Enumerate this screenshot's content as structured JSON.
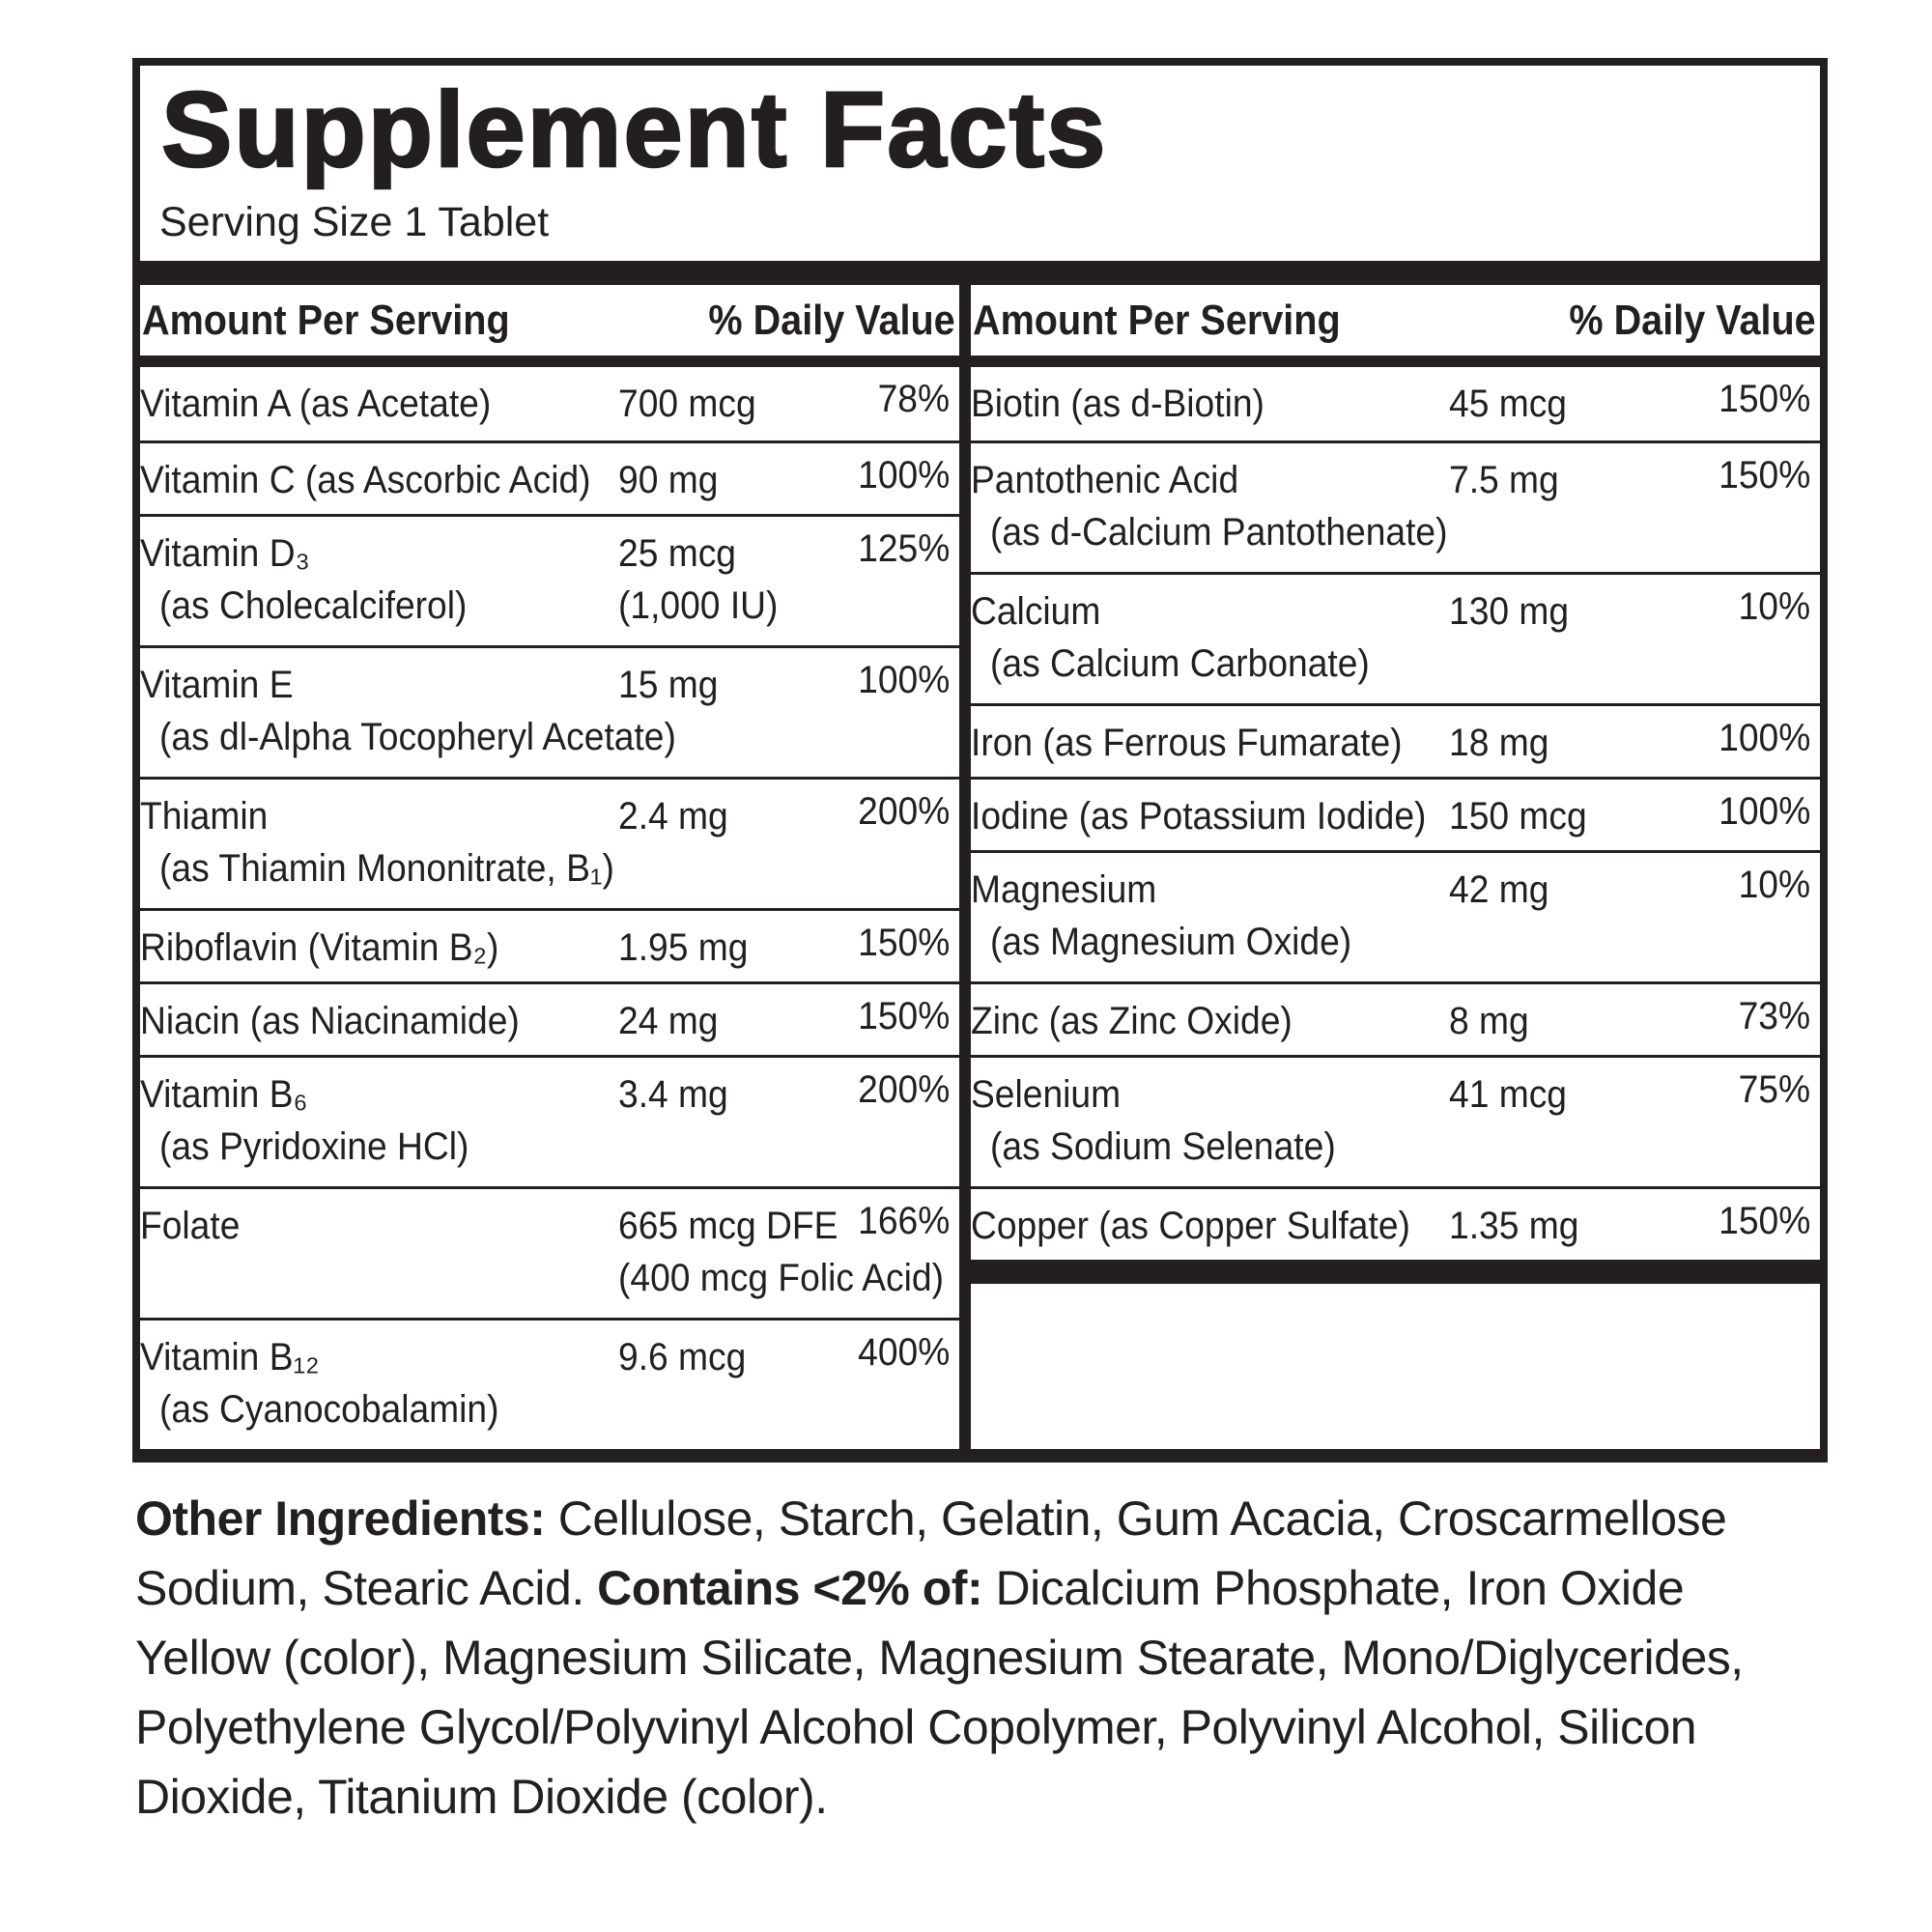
{
  "panel": {
    "title": "Supplement Facts",
    "serving_size": "Serving Size 1 Tablet",
    "ink_color": "#231f20",
    "header": {
      "amount": "Amount Per Serving",
      "daily_value": "% Daily Value"
    },
    "left_rows": [
      {
        "name": "Vitamin A (as Acetate)",
        "amount": "700 mcg",
        "dv": "78%"
      },
      {
        "name": "Vitamin C (as Ascorbic Acid)",
        "amount": "90 mg",
        "dv": "100%"
      },
      {
        "name": "Vitamin D₃",
        "name2": "(as Cholecalciferol)",
        "amount": "25 mcg",
        "amount2": "(1,000 IU)",
        "dv": "125%"
      },
      {
        "name": "Vitamin E",
        "name2": "(as dl-Alpha Tocopheryl Acetate)",
        "amount": "15 mg",
        "dv": "100%"
      },
      {
        "name": "Thiamin",
        "name2": "(as Thiamin Mononitrate, B₁)",
        "amount": "2.4 mg",
        "dv": "200%"
      },
      {
        "name": "Riboflavin (Vitamin B₂)",
        "amount": "1.95 mg",
        "dv": "150%"
      },
      {
        "name": "Niacin (as Niacinamide)",
        "amount": "24 mg",
        "dv": "150%"
      },
      {
        "name": "Vitamin B₆",
        "name2": "(as Pyridoxine HCl)",
        "amount": "3.4 mg",
        "dv": "200%"
      },
      {
        "name": "Folate",
        "amount": "665 mcg DFE",
        "amount2": "(400 mcg Folic Acid)",
        "dv": "166%"
      },
      {
        "name": "Vitamin B₁₂",
        "name2": "(as Cyanocobalamin)",
        "amount": "9.6 mcg",
        "dv": "400%"
      }
    ],
    "right_rows": [
      {
        "name": "Biotin (as d-Biotin)",
        "amount": "45 mcg",
        "dv": "150%"
      },
      {
        "name": "Pantothenic Acid",
        "name2": "(as d-Calcium Pantothenate)",
        "amount": "7.5 mg",
        "dv": "150%"
      },
      {
        "name": "Calcium",
        "name2": "(as Calcium Carbonate)",
        "amount": "130 mg",
        "dv": "10%"
      },
      {
        "name": "Iron (as Ferrous Fumarate)",
        "amount": "18 mg",
        "dv": "100%"
      },
      {
        "name": "Iodine (as Potassium Iodide)",
        "amount": "150 mcg",
        "dv": "100%"
      },
      {
        "name": "Magnesium",
        "name2": "(as Magnesium Oxide)",
        "amount": "42 mg",
        "dv": "10%"
      },
      {
        "name": "Zinc (as Zinc Oxide)",
        "amount": "8 mg",
        "dv": "73%"
      },
      {
        "name": "Selenium",
        "name2": "(as Sodium Selenate)",
        "amount": "41 mcg",
        "dv": "75%"
      },
      {
        "name": "Copper (as Copper Sulfate)",
        "amount": "1.35 mg",
        "dv": "150%"
      }
    ],
    "other_ingredients": [
      {
        "text": "Other Ingredients: ",
        "bold": true
      },
      {
        "text": "Cellulose, Starch, Gelatin, Gum Acacia, Croscarmellose Sodium, Stearic Acid. ",
        "bold": false
      },
      {
        "text": "Contains <2% of: ",
        "bold": true
      },
      {
        "text": "Dicalcium Phosphate, Iron Oxide Yellow (color), Magnesium Silicate, Magnesium Stearate, Mono/Diglycerides, Polyethylene Glycol/Polyvinyl Alcohol Copolymer, Polyvinyl Alcohol, Silicon Dioxide, Titanium Dioxide (color).",
        "bold": false
      }
    ]
  }
}
